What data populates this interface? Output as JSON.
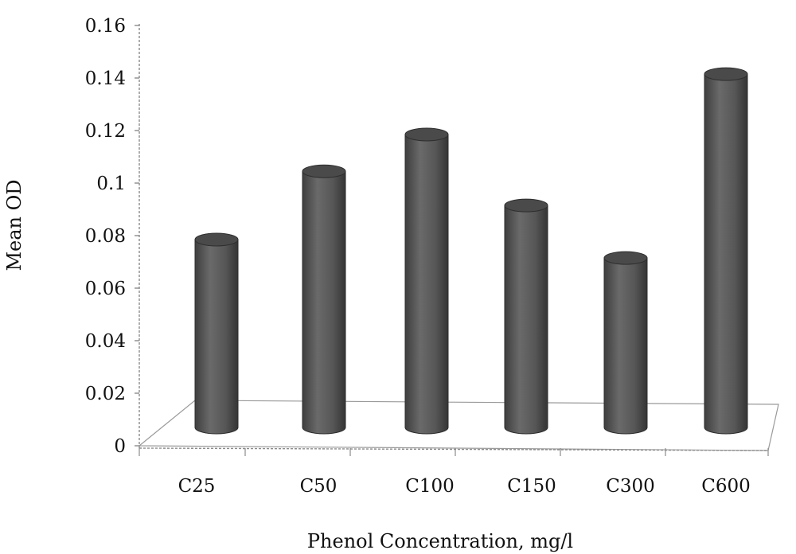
{
  "chart_data": {
    "type": "bar",
    "style": "3d-cylinder",
    "categories": [
      "C25",
      "C50",
      "C100",
      "C150",
      "C300",
      "C600"
    ],
    "series": [
      {
        "values": [
          0.08,
          0.106,
          0.12,
          0.093,
          0.073,
          0.143
        ]
      }
    ],
    "xlabel": "Phenol Concentration, mg/l",
    "ylabel": "Mean OD",
    "ylim": [
      0,
      0.16
    ],
    "yticks": [
      "0",
      "0.02",
      "0.04",
      "0.06",
      "0.08",
      "0.1",
      "0.12",
      "0.14",
      "0.16"
    ],
    "grid": false,
    "legend": "none",
    "colors": {
      "bar_body": "#555555",
      "bar_top": "#4a4a4a",
      "axis": "#8c8c8c"
    }
  }
}
